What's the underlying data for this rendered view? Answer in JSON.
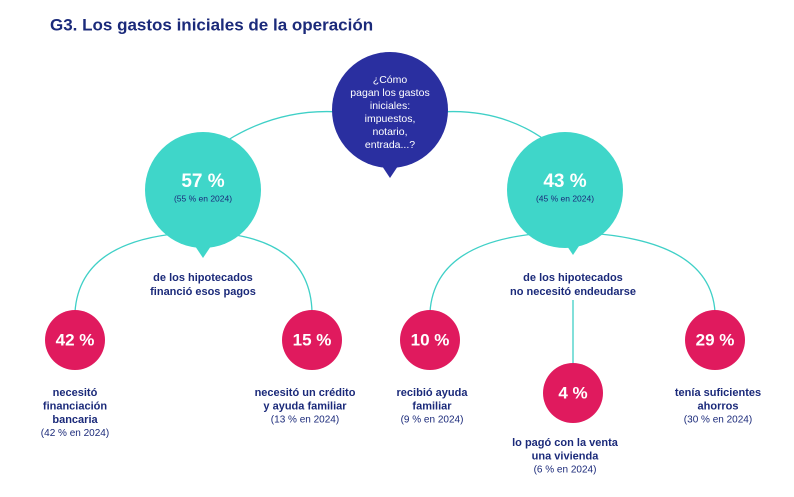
{
  "title": "G3. Los gastos iniciales de la operación",
  "question": {
    "lines": [
      "¿Cómo",
      "pagan los gastos",
      "iniciales:",
      "impuestos,",
      "notario,",
      "entrada...?"
    ]
  },
  "branches": [
    {
      "value": "57 %",
      "previous": "(55 % en 2024)",
      "description": [
        "de los hipotecados",
        "financió esos pagos"
      ],
      "outcomes": [
        {
          "value": "42 %",
          "label": [
            "necesitó",
            "financiación",
            "bancaria"
          ],
          "previous": "(42 % en 2024)"
        },
        {
          "value": "15 %",
          "label": [
            "necesitó un crédito",
            "y ayuda familiar"
          ],
          "previous": "(13 % en 2024)"
        }
      ]
    },
    {
      "value": "43 %",
      "previous": "(45 % en 2024)",
      "description": [
        "de los hipotecados",
        "no necesitó endeudarse"
      ],
      "outcomes": [
        {
          "value": "10 %",
          "label": [
            "recibió ayuda",
            "familiar"
          ],
          "previous": "(9 % en 2024)"
        },
        {
          "value": "4 %",
          "label": [
            "lo pagó con la venta",
            "una vivienda"
          ],
          "previous": "(6 % en 2024)"
        },
        {
          "value": "29 %",
          "label": [
            "tenía suficientes",
            "ahorros"
          ],
          "previous": "(30 % en 2024)"
        }
      ]
    }
  ]
}
